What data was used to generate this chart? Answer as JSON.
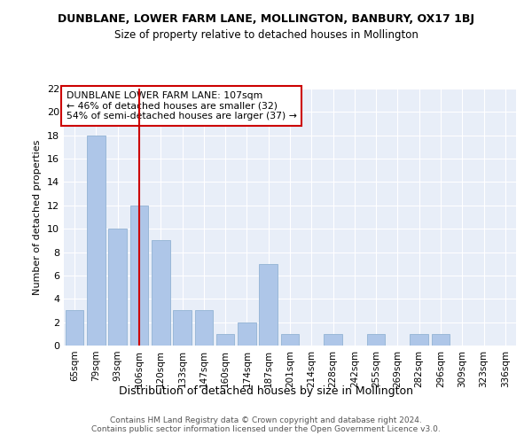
{
  "title": "DUNBLANE, LOWER FARM LANE, MOLLINGTON, BANBURY, OX17 1BJ",
  "subtitle": "Size of property relative to detached houses in Mollington",
  "xlabel": "Distribution of detached houses by size in Mollington",
  "ylabel": "Number of detached properties",
  "categories": [
    "65sqm",
    "79sqm",
    "93sqm",
    "106sqm",
    "120sqm",
    "133sqm",
    "147sqm",
    "160sqm",
    "174sqm",
    "187sqm",
    "201sqm",
    "214sqm",
    "228sqm",
    "242sqm",
    "255sqm",
    "269sqm",
    "282sqm",
    "296sqm",
    "309sqm",
    "323sqm",
    "336sqm"
  ],
  "values": [
    3,
    18,
    10,
    12,
    9,
    3,
    3,
    1,
    2,
    7,
    1,
    0,
    1,
    0,
    1,
    0,
    1,
    1,
    0,
    0,
    0
  ],
  "bar_color": "#aec6e8",
  "bar_edgecolor": "#9ab8d8",
  "redline_index": 3,
  "redline_label": "DUNBLANE LOWER FARM LANE: 107sqm",
  "redline_stat1": "← 46% of detached houses are smaller (32)",
  "redline_stat2": "54% of semi-detached houses are larger (37) →",
  "redline_color": "#cc0000",
  "annotation_box_edgecolor": "#cc0000",
  "ylim": [
    0,
    22
  ],
  "yticks": [
    0,
    2,
    4,
    6,
    8,
    10,
    12,
    14,
    16,
    18,
    20,
    22
  ],
  "background_color": "#e8eef8",
  "footer_line1": "Contains HM Land Registry data © Crown copyright and database right 2024.",
  "footer_line2": "Contains public sector information licensed under the Open Government Licence v3.0."
}
